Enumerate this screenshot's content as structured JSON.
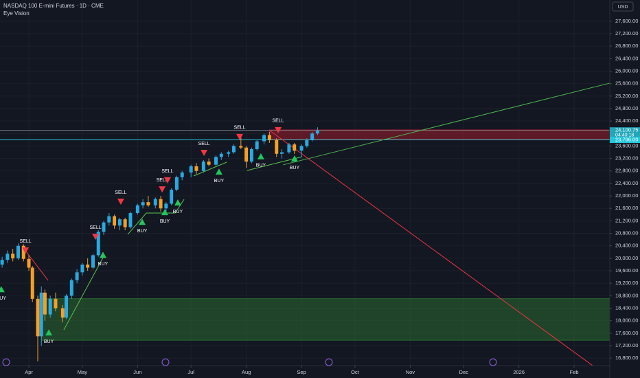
{
  "chart_data": {
    "type": "candlestick",
    "title": "NASDAQ 100 E-mini Futures · 1D · CME",
    "subtitle": "Eye Vision",
    "currency": "USD",
    "grid": true,
    "up_color": "#29a9e1",
    "down_color": "#f59f27",
    "xlim": [
      74.8,
      417
    ],
    "ylim": [
      16560,
      28280
    ],
    "xticks": [
      {
        "value": 91,
        "label": "Apr"
      },
      {
        "value": 121,
        "label": "May"
      },
      {
        "value": 152,
        "label": "Jun"
      },
      {
        "value": 182,
        "label": "Jul"
      },
      {
        "value": 213,
        "label": "Aug"
      },
      {
        "value": 244,
        "label": "Sep"
      },
      {
        "value": 274,
        "label": "Oct"
      },
      {
        "value": 305,
        "label": "Nov"
      },
      {
        "value": 335,
        "label": "Dec"
      },
      {
        "value": 366,
        "label": "2026"
      },
      {
        "value": 397,
        "label": "Feb"
      }
    ],
    "yticks": [
      {
        "value": 16800,
        "label": "16,800.00"
      },
      {
        "value": 17200,
        "label": "17,200.00"
      },
      {
        "value": 17600,
        "label": "17,600.00"
      },
      {
        "value": 18000,
        "label": "18,000.00"
      },
      {
        "value": 18400,
        "label": "18,400.00"
      },
      {
        "value": 18800,
        "label": "18,800.00"
      },
      {
        "value": 19200,
        "label": "19,200.00"
      },
      {
        "value": 19600,
        "label": "19,600.00"
      },
      {
        "value": 20000,
        "label": "20,000.00"
      },
      {
        "value": 20400,
        "label": "20,400.00"
      },
      {
        "value": 20800,
        "label": "20,800.00"
      },
      {
        "value": 21200,
        "label": "21,200.00"
      },
      {
        "value": 21600,
        "label": "21,600.00"
      },
      {
        "value": 22000,
        "label": "22,000.00"
      },
      {
        "value": 22400,
        "label": "22,400.00"
      },
      {
        "value": 22800,
        "label": "22,800.00"
      },
      {
        "value": 23200,
        "label": "23,200.00"
      },
      {
        "value": 23600,
        "label": "23,600.00"
      },
      {
        "value": 24000,
        "label": "24,000.00"
      },
      {
        "value": 24400,
        "label": "24,400.00"
      },
      {
        "value": 24800,
        "label": "24,800.00"
      },
      {
        "value": 25200,
        "label": "25,200.00"
      },
      {
        "value": 25600,
        "label": "25,600.00"
      },
      {
        "value": 26000,
        "label": "26,000.00"
      },
      {
        "value": 26400,
        "label": "26,400.00"
      },
      {
        "value": 26800,
        "label": "26,800.00"
      },
      {
        "value": 27200,
        "label": "27,200.00"
      },
      {
        "value": 27600,
        "label": "27,600.00"
      }
    ],
    "x": [
      76,
      79,
      82,
      85,
      88,
      91,
      93,
      96,
      98,
      100,
      103,
      106,
      110,
      112,
      115,
      118,
      121,
      124,
      127,
      130,
      133,
      136,
      139,
      142,
      145,
      148,
      152,
      155,
      158,
      162,
      165,
      168,
      171,
      174,
      177,
      182,
      185,
      189,
      192,
      196,
      199,
      203,
      206,
      210,
      213,
      216,
      219,
      223,
      226,
      230,
      233,
      237,
      240,
      244,
      247,
      250,
      253
    ],
    "open": [
      19800,
      19950,
      20150,
      20000,
      20400,
      19980,
      19700,
      18700,
      17500,
      18900,
      18200,
      18700,
      18400,
      18100,
      18800,
      19300,
      19550,
      19800,
      19700,
      20100,
      20850,
      21150,
      21350,
      21050,
      21250,
      21000,
      21450,
      21700,
      21800,
      21700,
      21900,
      21600,
      21750,
      22200,
      22600,
      22750,
      22950,
      22800,
      23100,
      23000,
      23250,
      23350,
      23400,
      23600,
      23550,
      23100,
      23500,
      23750,
      23950,
      23800,
      23350,
      23400,
      23650,
      23450,
      23600,
      23800,
      24000
    ],
    "high": [
      20050,
      20250,
      20300,
      20480,
      20450,
      20100,
      19750,
      18800,
      19100,
      19000,
      18800,
      18900,
      18500,
      18850,
      19350,
      19650,
      19850,
      20000,
      20150,
      20900,
      21200,
      21450,
      21400,
      21300,
      21300,
      21500,
      21750,
      21900,
      22000,
      21950,
      22000,
      21800,
      22250,
      22650,
      22800,
      23000,
      23050,
      23150,
      23200,
      23300,
      23400,
      23450,
      23650,
      23900,
      23600,
      23550,
      23800,
      24000,
      24050,
      23850,
      23500,
      23700,
      23700,
      23650,
      23850,
      24050,
      24200
    ],
    "low": [
      19700,
      19850,
      19900,
      19950,
      19900,
      19600,
      18600,
      16700,
      17200,
      18000,
      18100,
      18300,
      17950,
      18050,
      18700,
      19200,
      19450,
      19600,
      19650,
      20050,
      20750,
      21050,
      20950,
      20900,
      20900,
      20950,
      21400,
      21600,
      21650,
      21600,
      21500,
      21450,
      21700,
      22150,
      22500,
      22600,
      22700,
      22750,
      22950,
      22950,
      23150,
      23250,
      23350,
      23500,
      22900,
      23050,
      23450,
      23650,
      23700,
      23250,
      23200,
      23350,
      23350,
      23250,
      23550,
      23750,
      23950
    ],
    "close": [
      19950,
      20150,
      20000,
      20400,
      19980,
      19700,
      18700,
      17500,
      18900,
      18200,
      18700,
      18400,
      18100,
      18800,
      19300,
      19550,
      19800,
      19700,
      20100,
      20850,
      21150,
      21350,
      21050,
      21250,
      21000,
      21450,
      21700,
      21800,
      21700,
      21900,
      21600,
      21750,
      22200,
      22600,
      22750,
      22950,
      22800,
      23100,
      23000,
      23250,
      23350,
      23400,
      23600,
      23550,
      23100,
      23500,
      23750,
      23950,
      23800,
      23350,
      23400,
      23650,
      23450,
      23600,
      23800,
      24000,
      24100.75
    ],
    "zones": [
      {
        "color": "#b71c2c",
        "x": [
          226,
          417
        ],
        "y": [
          23809,
          24118
        ]
      },
      {
        "color": "#2e7d32",
        "x": [
          98,
          417
        ],
        "y": [
          17373,
          18705
        ]
      }
    ],
    "lines": [
      {
        "color": "#5cc450",
        "x": [
          110.6,
          132.6
        ],
        "y": [
          17704,
          20018
        ]
      },
      {
        "color": "#5cc450",
        "x": [
          146.5,
          156.9,
          173.1,
          178.1
        ],
        "y": [
          20767,
          21450,
          21450,
          21891
        ]
      },
      {
        "color": "#5cc450",
        "x": [
          183.5,
          202.0
        ],
        "y": [
          22640,
          23081
        ]
      },
      {
        "color": "#5cc450",
        "x": [
          213.5,
          244.4
        ],
        "y": [
          22817,
          23258
        ]
      },
      {
        "color": "#4caf50",
        "x": [
          233.6,
          417
        ],
        "y": [
          22994,
          25616
        ]
      },
      {
        "color": "#f23645",
        "x": [
          89.1,
          101.8
        ],
        "y": [
          20240,
          19293
        ]
      },
      {
        "color": "#f23645",
        "x": [
          226.2,
          417
        ],
        "y": [
          24095,
          16161
        ]
      }
    ],
    "price_lines": [
      {
        "value": 24100.75,
        "label": "24,100.75",
        "sublabel": "04:40:18",
        "color": "#787b86",
        "box_color": "#22a6b8"
      },
      {
        "value": 23796,
        "label": "23,796.00",
        "color": "#26c6da",
        "box_color": "#26c6da"
      }
    ],
    "signals": {
      "sell": {
        "color": "#f23645",
        "points": [
          {
            "label": "SELL",
            "x": 89.1,
            "y": 20260
          },
          {
            "label": "SELL",
            "x": 128.4,
            "y": 20700
          },
          {
            "label": "SELL",
            "x": 142.6,
            "y": 21825
          },
          {
            "label": "SELL",
            "x": 165.8,
            "y": 22220
          },
          {
            "label": "SELL",
            "x": 168.8,
            "y": 22510
          },
          {
            "label": "SELL",
            "x": 189.3,
            "y": 23390
          },
          {
            "label": "SELL",
            "x": 209.3,
            "y": 23900
          },
          {
            "label": "SELL",
            "x": 230.9,
            "y": 24120
          }
        ]
      },
      "buy": {
        "color": "#22c55e",
        "points": [
          {
            "label": "BUY",
            "x": 75.5,
            "y": 19000
          },
          {
            "label": "BUY",
            "x": 102.2,
            "y": 17615
          },
          {
            "label": "BUY",
            "x": 132.6,
            "y": 20100
          },
          {
            "label": "BUY",
            "x": 154.6,
            "y": 21160
          },
          {
            "label": "BUY",
            "x": 167.3,
            "y": 21470
          },
          {
            "label": "BUY",
            "x": 174.6,
            "y": 21780
          },
          {
            "label": "BUY",
            "x": 197.7,
            "y": 22770
          },
          {
            "label": "BUY",
            "x": 221.2,
            "y": 23260
          },
          {
            "label": "BUY",
            "x": 240.1,
            "y": 23190
          }
        ]
      }
    }
  }
}
